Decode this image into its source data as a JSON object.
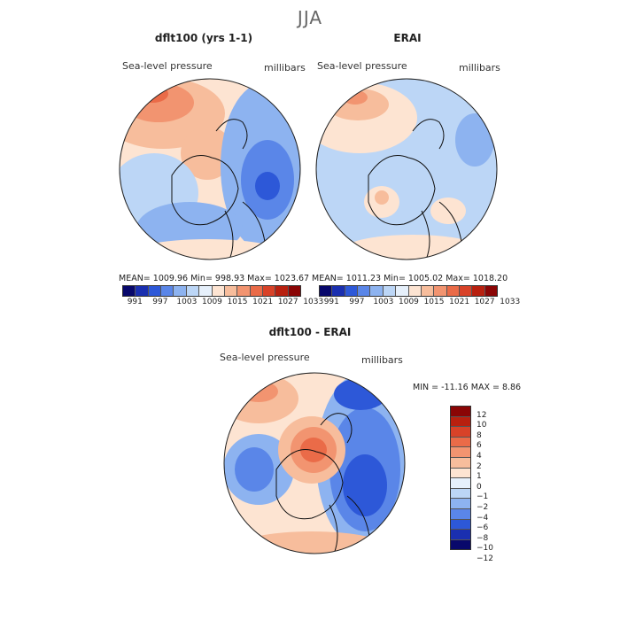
{
  "season": "JJA",
  "panels": [
    {
      "title": "dflt100 (yrs 1-1)",
      "field": "Sea-level pressure",
      "units": "millibars",
      "stats": "MEAN= 1009.96   Min=  998.93   Max= 1023.67"
    },
    {
      "title": "ERAI",
      "field": "Sea-level pressure",
      "units": "millibars",
      "stats": "MEAN= 1011.23   Min= 1005.02   Max= 1018.20"
    },
    {
      "title": "dflt100 - ERAI",
      "field": "Sea-level pressure",
      "units": "millibars",
      "stats": "MIN = -11.16 MAX =   8.86"
    }
  ],
  "slp_colorbar": {
    "colors": [
      "#08086b",
      "#1a2fb0",
      "#2d58d8",
      "#5a86e8",
      "#8db3f0",
      "#bcd6f6",
      "#e6f0fb",
      "#fde4d2",
      "#f7bd9c",
      "#f29470",
      "#ea6b48",
      "#d84228",
      "#b8200f",
      "#8a0505"
    ],
    "labels": [
      "991",
      "997",
      "1003",
      "1009",
      "1015",
      "1021",
      "1027",
      "1033"
    ]
  },
  "diff_colorbar": {
    "colors": [
      "#8a0505",
      "#b8200f",
      "#d84228",
      "#ea6b48",
      "#f29470",
      "#f7bd9c",
      "#fde4d2",
      "#e6f0fb",
      "#bcd6f6",
      "#8db3f0",
      "#5a86e8",
      "#2d58d8",
      "#1a2fb0",
      "#08086b"
    ],
    "labels": [
      "12",
      "10",
      "8",
      "6",
      "4",
      "2",
      "1",
      "0",
      "−1",
      "−2",
      "−4",
      "−6",
      "−8",
      "−10",
      "−12"
    ]
  }
}
